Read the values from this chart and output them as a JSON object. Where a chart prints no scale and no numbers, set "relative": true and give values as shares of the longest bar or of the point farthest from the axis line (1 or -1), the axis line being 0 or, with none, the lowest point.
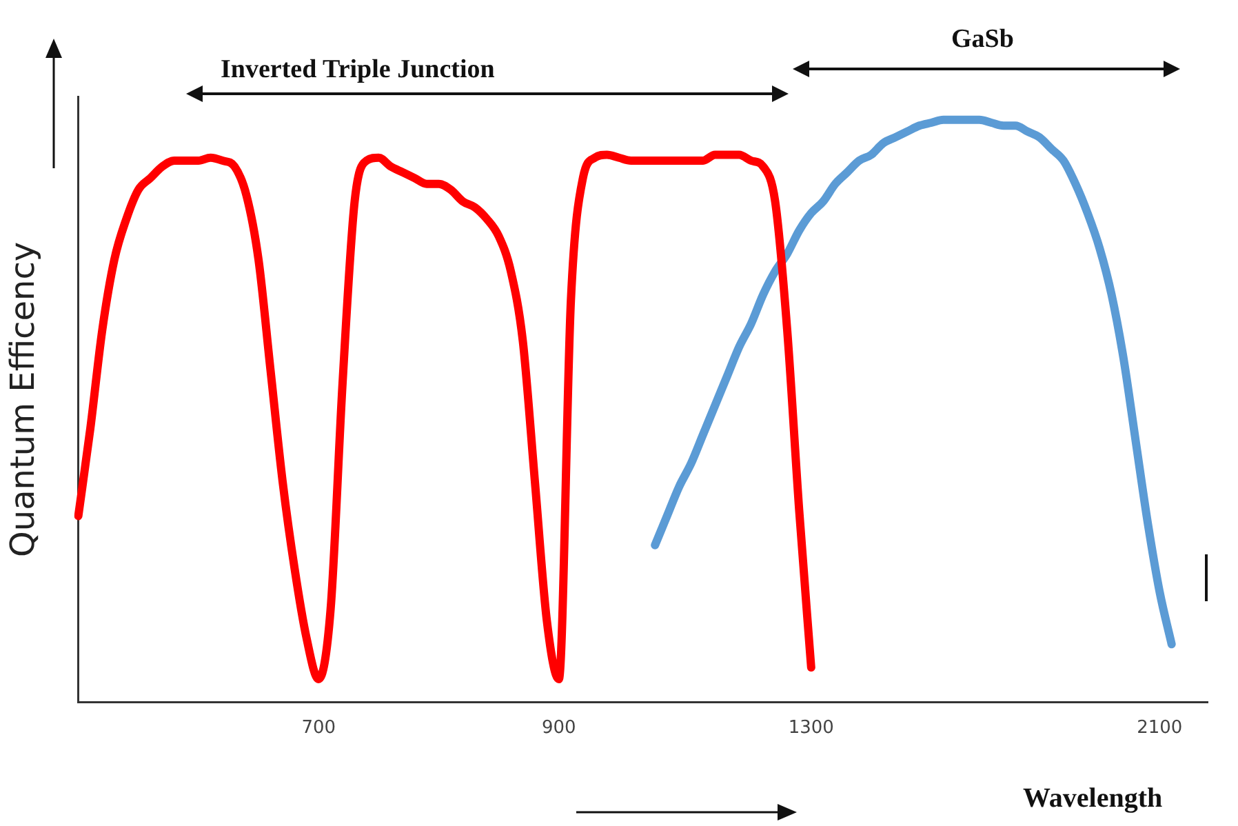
{
  "chart_data": {
    "type": "line",
    "relative": true,
    "xlabel": "Wavelength",
    "ylabel": "Quantum Efficency",
    "annotations": [
      "Inverted Triple Junction",
      "GaSb"
    ],
    "categories": [
      null,
      null,
      null,
      null,
      null,
      null,
      null,
      null,
      null,
      null,
      null,
      null,
      null,
      null,
      null,
      null,
      null,
      null,
      null,
      null,
      "700",
      null,
      null,
      null,
      null,
      null,
      null,
      null,
      null,
      null,
      null,
      null,
      null,
      null,
      null,
      null,
      null,
      null,
      null,
      null,
      "900",
      null,
      null,
      null,
      null,
      null,
      null,
      null,
      null,
      null,
      null,
      null,
      null,
      null,
      null,
      null,
      null,
      null,
      null,
      null,
      null,
      "1300",
      null,
      null,
      null,
      null,
      null,
      null,
      null,
      null,
      null,
      null,
      null,
      null,
      null,
      null,
      null,
      null,
      null,
      null,
      null,
      null,
      null,
      null,
      null,
      null,
      null,
      null,
      null,
      null,
      "2100",
      null,
      null,
      null,
      null
    ],
    "series": [
      {
        "color": "#ff0000",
        "values": [
          0.32,
          0.47,
          0.64,
          0.76,
          0.83,
          0.88,
          0.9,
          0.92,
          0.93,
          0.93,
          0.93,
          0.935,
          0.93,
          0.92,
          0.87,
          0.76,
          0.57,
          0.38,
          0.23,
          0.11,
          0.04,
          0.16,
          0.55,
          0.86,
          0.93,
          0.935,
          0.92,
          0.91,
          0.9,
          0.89,
          0.89,
          0.88,
          0.86,
          0.85,
          0.83,
          0.8,
          0.74,
          0.62,
          0.38,
          0.14,
          0.04,
          0.69,
          0.9,
          0.935,
          0.94,
          0.935,
          0.93,
          0.93,
          0.93,
          0.93,
          0.93,
          0.93,
          0.93,
          0.94,
          0.94,
          0.94,
          0.93,
          0.92,
          0.86,
          0.64,
          0.33,
          0.06,
          null,
          null,
          null,
          null,
          null,
          null,
          null,
          null,
          null,
          null,
          null,
          null,
          null,
          null,
          null,
          null,
          null,
          null,
          null,
          null,
          null,
          null,
          null,
          null,
          null,
          null,
          null,
          null,
          null,
          null,
          null,
          null,
          null
        ]
      },
      {
        "color": "#5b9bd5",
        "values": [
          null,
          null,
          null,
          null,
          null,
          null,
          null,
          null,
          null,
          null,
          null,
          null,
          null,
          null,
          null,
          null,
          null,
          null,
          null,
          null,
          null,
          null,
          null,
          null,
          null,
          null,
          null,
          null,
          null,
          null,
          null,
          null,
          null,
          null,
          null,
          null,
          null,
          null,
          null,
          null,
          null,
          null,
          null,
          null,
          null,
          null,
          null,
          null,
          0.27,
          0.32,
          0.37,
          0.41,
          0.46,
          0.51,
          0.56,
          0.61,
          0.65,
          0.7,
          0.74,
          0.77,
          0.81,
          0.84,
          0.86,
          0.89,
          0.91,
          0.93,
          0.94,
          0.96,
          0.97,
          0.98,
          0.99,
          0.995,
          1,
          1,
          1,
          1,
          0.995,
          0.99,
          0.99,
          0.98,
          0.97,
          0.95,
          0.93,
          0.89,
          0.84,
          0.78,
          0.7,
          0.59,
          0.45,
          0.31,
          0.19,
          0.1,
          null,
          null,
          null
        ]
      }
    ]
  }
}
